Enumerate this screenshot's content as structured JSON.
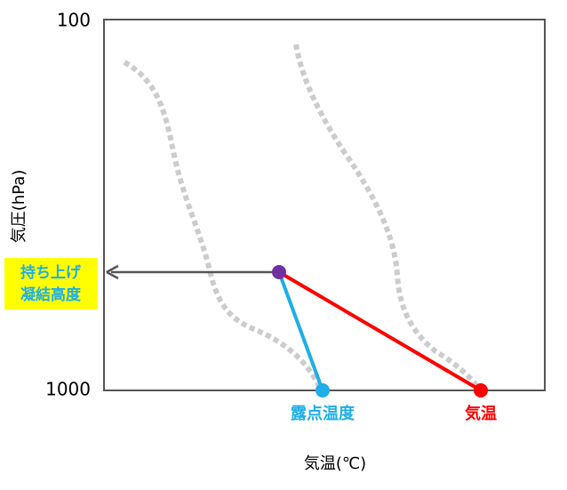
{
  "axes": {
    "y_label": "気圧(hPa)",
    "x_label": "気温(℃)",
    "y_ticks": [
      "100",
      "1000"
    ]
  },
  "labels": {
    "lcl": [
      "持ち上げ",
      "凝結高度"
    ],
    "dew_point": "露点温度",
    "temperature": "気温"
  }
}
